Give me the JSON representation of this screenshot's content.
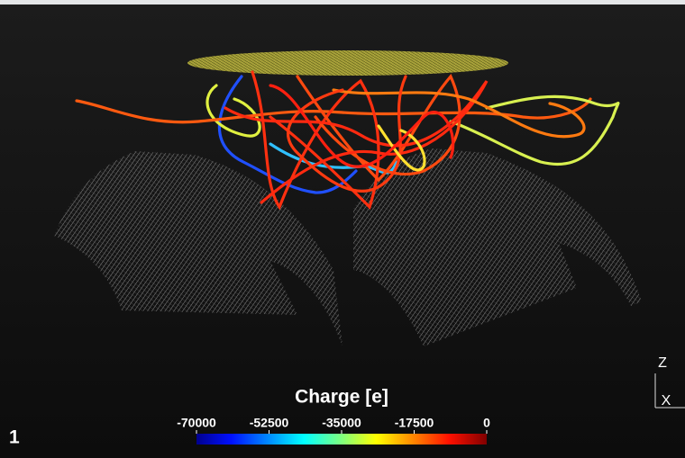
{
  "colorbar": {
    "title": "Charge [e]",
    "lim": [
      -70000,
      0
    ],
    "ticks": [
      -70000,
      -52500,
      -35000,
      -17500,
      0
    ]
  },
  "view_label": "1",
  "axes": {
    "z": "Z",
    "x": "X"
  }
}
